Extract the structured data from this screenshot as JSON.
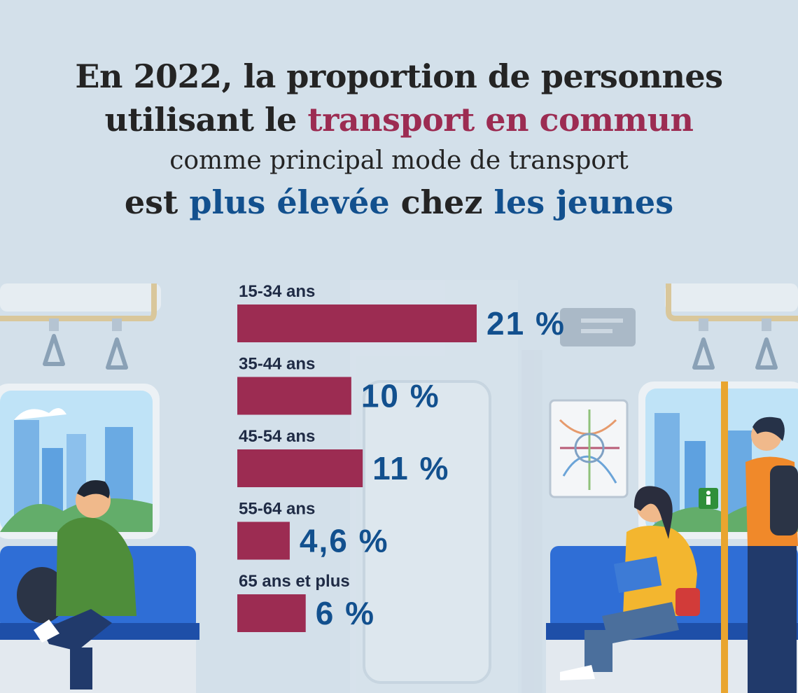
{
  "title": {
    "line1": "En 2022, la proportion de personnes",
    "line2_pre": "utilisant le ",
    "line2_hl": "transport en commun",
    "line3": "comme principal mode de transport",
    "line4_a": "est ",
    "line4_b": "plus élevée",
    "line4_c": " chez ",
    "line4_d": "les jeunes"
  },
  "colors": {
    "bar": "#9c2c52",
    "value_text": "#12508e",
    "highlight_red": "#9c2c52",
    "highlight_blue": "#12508e",
    "background": "#d3e0ea"
  },
  "chart_data": {
    "type": "bar",
    "orientation": "horizontal",
    "categories": [
      "15-34 ans",
      "35-44 ans",
      "45-54 ans",
      "55-64 ans",
      "65 ans et plus"
    ],
    "values": [
      21,
      10,
      11,
      4.6,
      6
    ],
    "value_labels": [
      "21 %",
      "10 %",
      "11 %",
      "4,6 %",
      "6 %"
    ],
    "unit": "%",
    "xlim": [
      0,
      21
    ],
    "grid": false,
    "legend": "none"
  },
  "icons": [
    "subway-car-interior-illustration",
    "skyline-window-illustration",
    "metro-map-icon",
    "accessibility-sign-icon",
    "grab-handle-icon"
  ]
}
